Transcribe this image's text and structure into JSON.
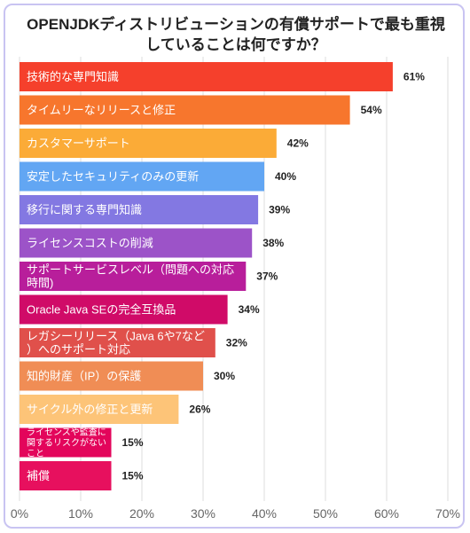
{
  "title": "OPENJDKディストリビューションの有償サポートで最も重視していることは何ですか？",
  "chart_data": {
    "type": "bar",
    "orientation": "horizontal",
    "title": "OPENJDKディストリビューションの有償サポートで最も重視していることは何ですか？",
    "xlim": [
      0,
      70
    ],
    "x_ticks": [
      "0%",
      "10%",
      "20%",
      "30%",
      "40%",
      "50%",
      "60%",
      "70%"
    ],
    "grid": true,
    "categories": [
      "技術的な専門知識",
      "タイムリーなリリースと修正",
      "カスタマーサポート",
      "安定したセキュリティのみの更新",
      "移行に関する専門知識",
      "ライセンスコストの削減",
      "サポートサービスレベル（問題への対応時間)",
      "Oracle Java SEの完全互換品",
      "レガシーリリース（Java 6や7など）へのサポート対応",
      "知的財産（IP）の保護",
      "サイクル外の修正と更新",
      "ライセンスや監査に関するリスクがないこと",
      "補償"
    ],
    "values": [
      61,
      54,
      42,
      40,
      39,
      38,
      37,
      34,
      32,
      30,
      26,
      15,
      15
    ],
    "value_labels": [
      "61%",
      "54%",
      "42%",
      "40%",
      "39%",
      "38%",
      "37%",
      "34%",
      "32%",
      "30%",
      "26%",
      "15%",
      "15%"
    ],
    "colors": [
      "#f5402c",
      "#f7762d",
      "#fbab37",
      "#62a6f3",
      "#8378e2",
      "#9c53c8",
      "#b81e9b",
      "#d00b68",
      "#e0504b",
      "#f08d55",
      "#fdc478",
      "#e3055b",
      "#e7105e"
    ]
  }
}
